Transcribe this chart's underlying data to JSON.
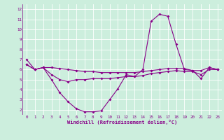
{
  "xlabel": "Windchill (Refroidissement éolien,°C)",
  "background_color": "#cceedd",
  "grid_color": "#ffffff",
  "line_color": "#880088",
  "hours": [
    0,
    1,
    2,
    3,
    4,
    5,
    6,
    7,
    8,
    9,
    10,
    11,
    12,
    13,
    14,
    15,
    16,
    17,
    18,
    19,
    20,
    21,
    22,
    23
  ],
  "line1": [
    7.0,
    6.0,
    6.2,
    5.0,
    3.7,
    2.8,
    2.1,
    1.8,
    1.8,
    1.9,
    3.0,
    4.1,
    5.5,
    5.3,
    6.0,
    10.8,
    11.5,
    11.3,
    8.5,
    6.0,
    5.9,
    5.1,
    6.2,
    6.0
  ],
  "line2": [
    6.5,
    6.0,
    6.2,
    6.2,
    6.1,
    6.0,
    5.9,
    5.8,
    5.8,
    5.7,
    5.7,
    5.7,
    5.7,
    5.7,
    5.8,
    5.9,
    6.0,
    6.1,
    6.1,
    6.1,
    5.9,
    5.9,
    6.2,
    6.0
  ],
  "line3": [
    6.5,
    6.0,
    6.2,
    5.5,
    5.0,
    4.8,
    5.0,
    5.0,
    5.1,
    5.1,
    5.1,
    5.2,
    5.3,
    5.3,
    5.4,
    5.6,
    5.7,
    5.8,
    5.9,
    5.8,
    5.8,
    5.5,
    6.0,
    6.0
  ],
  "ylim": [
    1.5,
    12.5
  ],
  "yticks": [
    2,
    3,
    4,
    5,
    6,
    7,
    8,
    9,
    10,
    11,
    12
  ],
  "xticks": [
    0,
    1,
    2,
    3,
    4,
    5,
    6,
    7,
    8,
    9,
    10,
    11,
    12,
    13,
    14,
    15,
    16,
    17,
    18,
    19,
    20,
    21,
    22,
    23
  ]
}
